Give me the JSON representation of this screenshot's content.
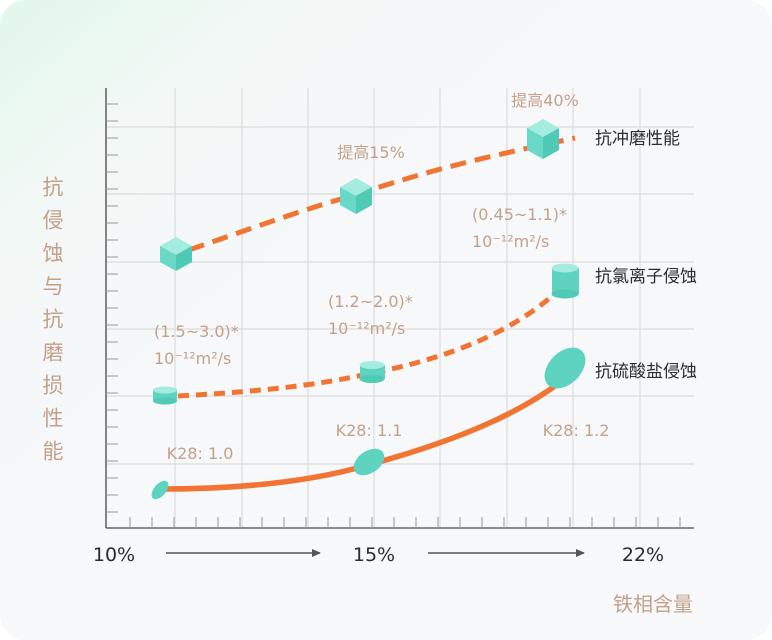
{
  "y_axis_label": "抗侵蚀与抗磨损性能",
  "x_axis_label": "铁相含量",
  "x_ticks": [
    "10%",
    "15%",
    "22%"
  ],
  "series": [
    {
      "key": "abrasion",
      "name": "抗冲磨性能",
      "line_style": "dashed",
      "marker": "cube",
      "annotations": [
        "提高15%",
        "提高40%"
      ]
    },
    {
      "key": "chloride",
      "name": "抗氯离子侵蚀",
      "line_style": "dashed",
      "marker": "cylinder",
      "annotations": [
        {
          "range": "(1.5~3.0)*",
          "unit": "10⁻¹²m²/s"
        },
        {
          "range": "(1.2~2.0)*",
          "unit": "10⁻¹²m²/s"
        },
        {
          "range": "(0.45~1.1)*",
          "unit": "10⁻¹²m²/s"
        }
      ]
    },
    {
      "key": "sulfate",
      "name": "抗硫酸盐侵蚀",
      "line_style": "solid",
      "marker": "ellipse",
      "annotations": [
        "K28: 1.0",
        "K28: 1.1",
        "K28: 1.2"
      ]
    }
  ],
  "colors": {
    "line": "#f27433",
    "marker": "#5dd3c0",
    "marker_light": "#a5ece0",
    "grid": "#dcdcdc",
    "label": "#c4a089",
    "text": "#2c2c2c"
  }
}
